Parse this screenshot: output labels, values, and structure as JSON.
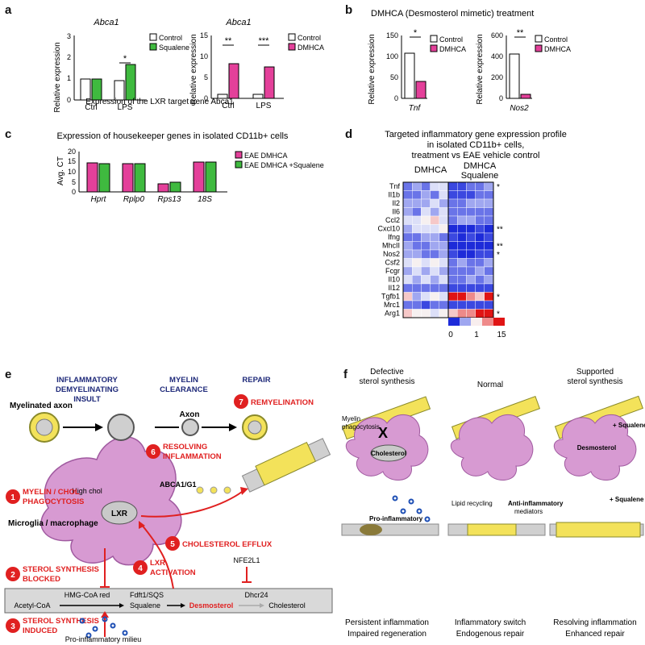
{
  "panel_a": {
    "label": "a",
    "caption": "Expression of the LXR target gene Abca1",
    "left": {
      "title": "Abca1",
      "ylabel": "Relative expression",
      "yticks": [
        "0",
        "1",
        "2",
        "3"
      ],
      "legend": [
        "Control",
        "Squalene"
      ],
      "significance": "*"
    },
    "right": {
      "title": "Abca1",
      "ylabel": "Relative expression",
      "yticks": [
        "0",
        "5",
        "10",
        "15"
      ],
      "legend": [
        "Control",
        "DMHCA"
      ],
      "significance": [
        "**",
        "***"
      ]
    }
  },
  "panel_b": {
    "label": "b",
    "title": "DMHCA (Desmosterol mimetic) treatment",
    "left": {
      "ylabel": "Relative expression",
      "xlabel": "Tnf",
      "yticks": [
        "0",
        "50",
        "100",
        "150"
      ],
      "legend": [
        "Control",
        "DMHCA"
      ],
      "significance": "*"
    },
    "right": {
      "ylabel": "Relative expression",
      "xlabel": "Nos2",
      "yticks": [
        "0",
        "200",
        "400",
        "600"
      ],
      "legend": [
        "Control",
        "DMHCA"
      ],
      "significance": "**"
    }
  },
  "panel_c": {
    "label": "c",
    "title": "Expression of housekeeper genes in isolated CD11b+ cells",
    "ylabel": "Avg. CT",
    "yticks": [
      "0",
      "5",
      "10",
      "15",
      "20"
    ],
    "legend": [
      "EAE DMHCA",
      "EAE DMHCA +Squalene"
    ]
  },
  "panel_d": {
    "label": "d",
    "title": [
      "Targeted inflammatory gene expression profile",
      "in isolated CD11b+ cells,",
      "treatment vs EAE vehicle control"
    ],
    "col_header_left": "DMHCA",
    "col_header_right": [
      "DMHCA",
      "Squalene"
    ],
    "genes": [
      "Tnf",
      "Il1b",
      "Il2",
      "Il6",
      "Ccl2",
      "Cxcl10",
      "Ifng",
      "MhcII",
      "Nos2",
      "Csf2",
      "Fcgr",
      "Il10",
      "Il12",
      "Tgfb1",
      "Mrc1",
      "Arg1"
    ],
    "stars": [
      "*",
      "",
      "",
      "",
      "",
      "**",
      "",
      "**",
      "*",
      "",
      "",
      "",
      "",
      "*",
      "",
      "*"
    ],
    "scale_labels": [
      "0",
      "1",
      "15"
    ]
  },
  "panel_e": {
    "label": "e",
    "headers": [
      [
        "INFLAMMATORY",
        "DEMYELINATING",
        "INSULT"
      ],
      [
        "MYELIN",
        "CLEARANCE"
      ],
      [
        "REPAIR"
      ]
    ],
    "myelinated_axon": "Myelinated axon",
    "axon": "Axon",
    "microglia": "Microglia / macrophage",
    "high_chol": "High chol",
    "lxr": "LXR",
    "abca": "ABCA1/G1",
    "nfe": "NFE2L1",
    "steps": [
      {
        "n": "1",
        "text": [
          "MYELIN / CHOL",
          "PHAGOCYTOSIS"
        ]
      },
      {
        "n": "2",
        "text": [
          "STEROL SYNTHESIS",
          "BLOCKED"
        ]
      },
      {
        "n": "3",
        "text": [
          "STEROL SYNTHESIS",
          "INDUCED"
        ]
      },
      {
        "n": "4",
        "text": [
          "LXR",
          "ACTIVATION"
        ]
      },
      {
        "n": "5",
        "text": [
          "CHOLESTEROL EFFLUX"
        ]
      },
      {
        "n": "6",
        "text": [
          "RESOLVING",
          "INFLAMMATION"
        ]
      },
      {
        "n": "7",
        "text": [
          "REMYELINATION"
        ]
      }
    ],
    "pathway": {
      "top": [
        "HMG-CoA red",
        "Fdft1/SQS",
        "Dhcr24"
      ],
      "bottom": [
        "Acetyl-CoA",
        "Squalene",
        "Desmosterol",
        "Cholesterol"
      ]
    },
    "milieu": "Pro-inflammatory milieu"
  },
  "panel_f": {
    "label": "f",
    "columns": [
      {
        "title": [
          "Defective",
          "sterol synthesis"
        ],
        "bottom": [
          "Persistent inflammation",
          "Impaired regeneration"
        ]
      },
      {
        "title": [
          "Normal"
        ],
        "bottom": [
          "Inflammatory switch",
          "Endogenous repair"
        ]
      },
      {
        "title": [
          "Supported",
          "sterol synthesis"
        ],
        "bottom": [
          "Resolving inflammation",
          "Enhanced repair"
        ]
      }
    ],
    "labels": {
      "myelin_phago": [
        "Myelin",
        "phagocytosis"
      ],
      "cholesterol": "Cholesterol",
      "pro_med": [
        "Pro-inflammatory",
        "mediators"
      ],
      "lipid_recycling": "Lipid recycling",
      "anti_med": [
        "Anti-inflammatory",
        "mediators"
      ],
      "desmosterol": "Desmosterol",
      "squalene": "+ Squalene"
    }
  }
}
